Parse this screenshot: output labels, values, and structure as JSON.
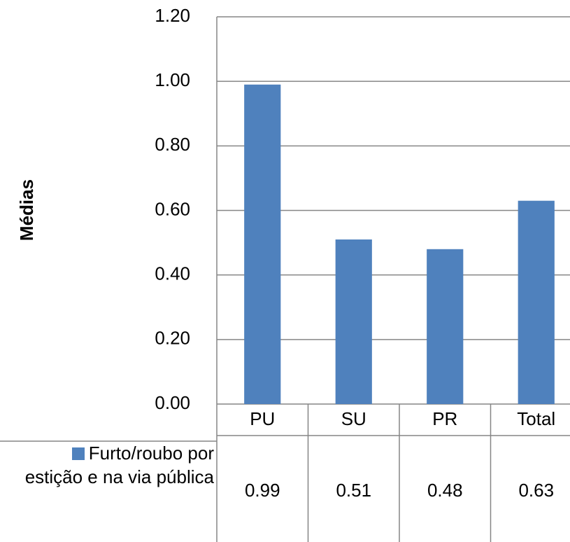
{
  "chart_data": {
    "type": "bar",
    "y_label": "Médias",
    "categories": [
      "PU",
      "SU",
      "PR",
      "Total"
    ],
    "series": [
      {
        "name": "Furto/roubo por estição e na via pública",
        "color": "#4f81bd",
        "values": [
          0.99,
          0.51,
          0.48,
          0.63
        ]
      }
    ],
    "ylim": [
      0,
      1.2
    ],
    "yticks": [
      {
        "value": 0,
        "label": "0.00"
      },
      {
        "value": 0.2,
        "label": "0.20"
      },
      {
        "value": 0.4,
        "label": "0.40"
      },
      {
        "value": 0.6,
        "label": "0.60"
      },
      {
        "value": 0.8,
        "label": "0.80"
      },
      {
        "value": 1,
        "label": "1.00"
      },
      {
        "value": 1.2,
        "label": "1.20"
      }
    ],
    "grid": true,
    "data_table": true
  }
}
